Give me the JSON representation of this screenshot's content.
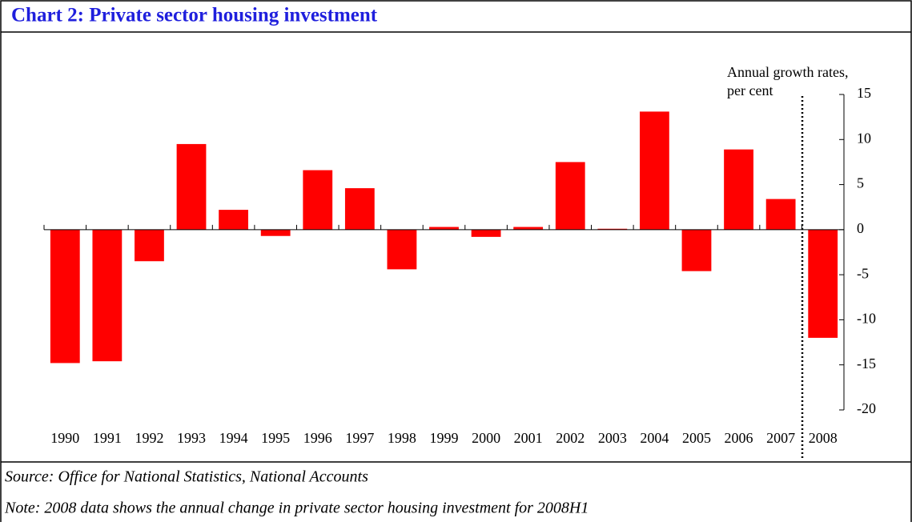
{
  "chart_data": {
    "type": "bar",
    "title": "Chart 2: Private sector housing investment",
    "annotation": [
      "Annual growth rates,",
      "per cent"
    ],
    "categories": [
      "1990",
      "1991",
      "1992",
      "1993",
      "1994",
      "1995",
      "1996",
      "1997",
      "1998",
      "1999",
      "2000",
      "2001",
      "2002",
      "2003",
      "2004",
      "2005",
      "2006",
      "2007",
      "2008"
    ],
    "values": [
      -14.8,
      -14.6,
      -3.5,
      9.5,
      2.2,
      -0.7,
      6.6,
      4.6,
      -4.4,
      0.3,
      -0.8,
      0.3,
      7.5,
      0.1,
      13.1,
      -4.6,
      8.9,
      3.4,
      -12.0
    ],
    "color": "#ff0000",
    "ylim": [
      -20,
      15
    ],
    "yticks": [
      -20,
      -15,
      -10,
      -5,
      0,
      5,
      10,
      15
    ],
    "source": "Source: Office for National Statistics, National Accounts",
    "note": "Note: 2008 data shows the annual change in private sector housing investment for 2008H1"
  }
}
